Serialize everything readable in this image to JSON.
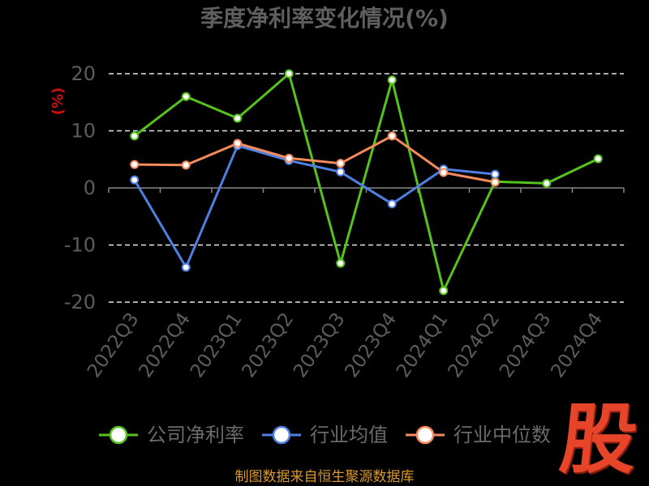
{
  "footer": "制图数据来自恒生聚源数据库",
  "logo_text": "股",
  "colors": {
    "background": "#000000",
    "title": "#5f5f5f",
    "y_axis_label": "#cc1010",
    "footer": "#d99a2b",
    "logo": "#e6452a",
    "gridline": "#e6e6e6",
    "axis": "#888888"
  },
  "chart_data": {
    "type": "line",
    "title": "季度净利率变化情况(%)",
    "xlabel": "",
    "ylabel": "(%)",
    "categories": [
      "2022Q3",
      "2022Q4",
      "2023Q1",
      "2023Q2",
      "2023Q3",
      "2023Q4",
      "2024Q1",
      "2024Q2",
      "2024Q3",
      "2024Q4"
    ],
    "ylim": [
      -20,
      20
    ],
    "yticks": [
      20,
      10,
      0,
      -10,
      -20
    ],
    "grid": true,
    "legend": "bottom",
    "series": [
      {
        "name": "公司净利率",
        "color": "#56c21e",
        "values": [
          9.1,
          16.0,
          12.2,
          20.0,
          -13.2,
          18.9,
          -18.0,
          1.1,
          0.8,
          5.1
        ]
      },
      {
        "name": "行业均值",
        "color": "#4f7fe3",
        "values": [
          1.4,
          -13.9,
          7.4,
          4.8,
          2.8,
          -2.8,
          3.3,
          2.4,
          null,
          null
        ]
      },
      {
        "name": "行业中位数",
        "color": "#f58a5c",
        "values": [
          4.1,
          4.0,
          7.8,
          5.2,
          4.3,
          9.1,
          2.7,
          1.0,
          null,
          null
        ]
      }
    ]
  }
}
